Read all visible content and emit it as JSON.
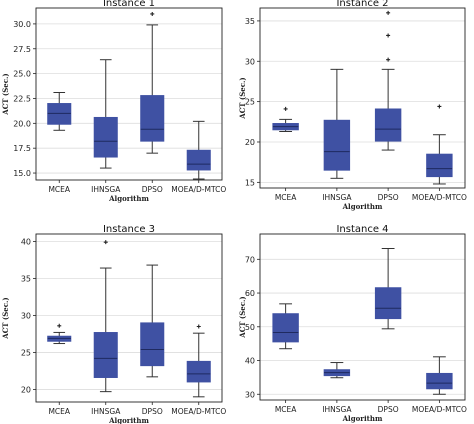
{
  "colors": {
    "box": "#3f51a3",
    "median": "#1f2a60",
    "whisker": "#333333",
    "grid": "#dddddd",
    "frame": "#222222"
  },
  "chart_data": [
    {
      "type": "box",
      "title": "Instance 1",
      "xlabel": "Algorithm",
      "ylabel": "ACT (Sec.)",
      "ylim": [
        14.3,
        31.6
      ],
      "yticks": [
        15.0,
        17.5,
        20.0,
        22.5,
        25.0,
        27.5,
        30.0
      ],
      "ytick_labels": [
        "15.0",
        "17.5",
        "20.0",
        "22.5",
        "25.0",
        "27.5",
        "30.0"
      ],
      "grid": true,
      "categories": [
        "MCEA",
        "IHNSGA",
        "DPSO",
        "MOEA/D-MTCO"
      ],
      "boxes": [
        {
          "whislo": 19.3,
          "q1": 19.9,
          "med": 21.0,
          "q3": 22.0,
          "whishi": 23.1,
          "fliers": []
        },
        {
          "whislo": 15.5,
          "q1": 16.6,
          "med": 18.2,
          "q3": 20.6,
          "whishi": 26.4,
          "fliers": []
        },
        {
          "whislo": 17.0,
          "q1": 18.2,
          "med": 19.4,
          "q3": 22.8,
          "whishi": 29.9,
          "fliers": [
            31.0
          ]
        },
        {
          "whislo": 14.4,
          "q1": 15.3,
          "med": 15.9,
          "q3": 17.3,
          "whishi": 20.2,
          "fliers": []
        }
      ]
    },
    {
      "type": "box",
      "title": "Instance 2",
      "xlabel": "Algorithm",
      "ylabel": "ACT (Sec.)",
      "ylim": [
        14.3,
        36.6
      ],
      "yticks": [
        15,
        20,
        25,
        30,
        35
      ],
      "ytick_labels": [
        "15",
        "20",
        "25",
        "30",
        "35"
      ],
      "grid": true,
      "categories": [
        "MCEA",
        "IHNSGA",
        "DPSO",
        "MOEA/D-MTCO"
      ],
      "boxes": [
        {
          "whislo": 21.3,
          "q1": 21.5,
          "med": 21.9,
          "q3": 22.3,
          "whishi": 22.8,
          "fliers": [
            24.1
          ]
        },
        {
          "whislo": 15.5,
          "q1": 16.5,
          "med": 18.8,
          "q3": 22.7,
          "whishi": 29.0,
          "fliers": []
        },
        {
          "whislo": 19.0,
          "q1": 20.1,
          "med": 21.6,
          "q3": 24.1,
          "whishi": 29.0,
          "fliers": [
            30.2,
            33.2,
            36.0
          ]
        },
        {
          "whislo": 14.8,
          "q1": 15.7,
          "med": 16.7,
          "q3": 18.5,
          "whishi": 20.9,
          "fliers": [
            24.4
          ]
        }
      ]
    },
    {
      "type": "box",
      "title": "Instance 3",
      "xlabel": "Algorithm",
      "ylabel": "ACT (Sec.)",
      "ylim": [
        18.3,
        41.0
      ],
      "yticks": [
        20,
        25,
        30,
        35,
        40
      ],
      "ytick_labels": [
        "20",
        "25",
        "30",
        "35",
        "40"
      ],
      "grid": true,
      "categories": [
        "MCEA",
        "IHNSGA",
        "DPSO",
        "MOEA/D-MTCO"
      ],
      "boxes": [
        {
          "whislo": 26.2,
          "q1": 26.5,
          "med": 26.9,
          "q3": 27.2,
          "whishi": 27.7,
          "fliers": [
            28.6
          ]
        },
        {
          "whislo": 19.7,
          "q1": 21.6,
          "med": 24.2,
          "q3": 27.7,
          "whishi": 36.4,
          "fliers": [
            39.9
          ]
        },
        {
          "whislo": 21.7,
          "q1": 23.2,
          "med": 25.4,
          "q3": 29.0,
          "whishi": 36.8,
          "fliers": []
        },
        {
          "whislo": 19.0,
          "q1": 21.0,
          "med": 22.1,
          "q3": 23.8,
          "whishi": 27.6,
          "fliers": [
            28.5
          ]
        }
      ]
    },
    {
      "type": "box",
      "title": "Instance 4",
      "xlabel": "Algorithm",
      "ylabel": "ACT (Sec.)",
      "ylim": [
        28.3,
        77.5
      ],
      "yticks": [
        30,
        40,
        50,
        60,
        70
      ],
      "ytick_labels": [
        "30",
        "40",
        "50",
        "60",
        "70"
      ],
      "grid": true,
      "categories": [
        "MCEA",
        "IHNSGA",
        "DPSO",
        "MOEA/D-MTCO"
      ],
      "boxes": [
        {
          "whislo": 43.5,
          "q1": 45.5,
          "med": 48.3,
          "q3": 53.9,
          "whishi": 56.8,
          "fliers": []
        },
        {
          "whislo": 34.9,
          "q1": 35.5,
          "med": 36.4,
          "q3": 37.3,
          "whishi": 39.4,
          "fliers": []
        },
        {
          "whislo": 49.4,
          "q1": 52.4,
          "med": 55.5,
          "q3": 61.6,
          "whishi": 73.2,
          "fliers": []
        },
        {
          "whislo": 30.0,
          "q1": 31.6,
          "med": 33.3,
          "q3": 36.2,
          "whishi": 41.1,
          "fliers": []
        }
      ]
    }
  ]
}
